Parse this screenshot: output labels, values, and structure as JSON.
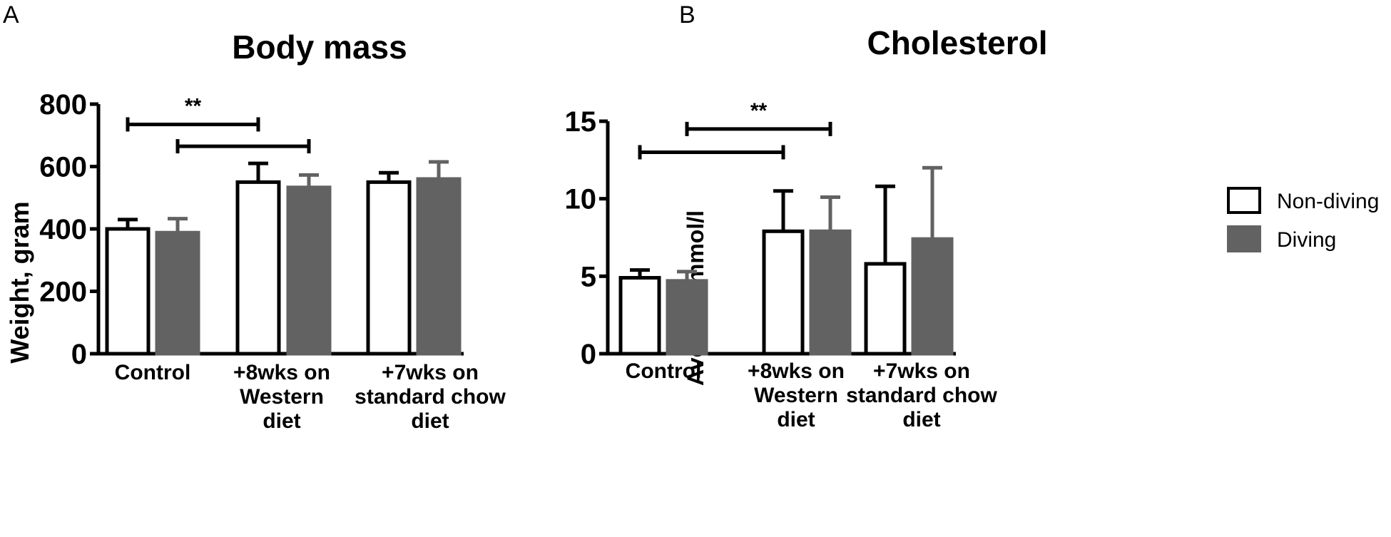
{
  "series_style": [
    {
      "name": "Non-diving",
      "fill": "#ffffff",
      "stroke": "#000000"
    },
    {
      "name": "Diving",
      "fill": "#626262",
      "stroke": "#626262"
    }
  ],
  "legend": {
    "items": [
      "Non-diving",
      "Diving"
    ]
  },
  "chart_data": [
    {
      "panel": "A",
      "type": "bar",
      "title": "Body mass",
      "xlabel": "",
      "ylabel": "Weight, gram",
      "ylim": [
        0,
        800
      ],
      "yticks": [
        0,
        200,
        400,
        600,
        800
      ],
      "ytick_labels": [
        "0",
        "200",
        "400",
        "600",
        "800"
      ],
      "categories": [
        [
          "Control"
        ],
        [
          "+8wks on",
          "Western",
          "diet"
        ],
        [
          "+7wks on",
          "standard chow",
          "diet"
        ]
      ],
      "series": [
        {
          "name": "Non-diving",
          "values": [
            400,
            550,
            550
          ],
          "errors": [
            30,
            60,
            30
          ]
        },
        {
          "name": "Diving",
          "values": [
            388,
            533,
            560
          ],
          "errors": [
            45,
            40,
            55
          ]
        }
      ],
      "significance": [
        {
          "label": "**",
          "from": [
            0,
            0
          ],
          "to": [
            1,
            0
          ],
          "y": 735
        },
        {
          "label": "",
          "from": [
            0,
            1
          ],
          "to": [
            1,
            1
          ],
          "y": 665
        }
      ]
    },
    {
      "panel": "B",
      "type": "bar",
      "title": "Cholesterol",
      "xlabel": "",
      "ylabel": "Average, mmol/l",
      "ylim": [
        0,
        15
      ],
      "yticks": [
        0,
        5,
        10,
        15
      ],
      "ytick_labels": [
        "0",
        "5",
        "10",
        "15"
      ],
      "categories": [
        [
          "Control"
        ],
        [
          "+8wks on",
          "Western",
          "diet"
        ],
        [
          "+7wks on",
          "standard chow",
          "diet"
        ]
      ],
      "series": [
        {
          "name": "Non-diving",
          "values": [
            4.9,
            7.9,
            5.8
          ],
          "errors": [
            0.5,
            2.6,
            5.0
          ]
        },
        {
          "name": "Diving",
          "values": [
            4.7,
            7.9,
            7.4
          ],
          "errors": [
            0.6,
            2.2,
            4.6
          ]
        }
      ],
      "significance": [
        {
          "label": "**",
          "from": [
            0,
            1
          ],
          "to": [
            1,
            1
          ],
          "y": 14.5
        },
        {
          "label": "",
          "from": [
            0,
            0
          ],
          "to": [
            1,
            0
          ],
          "y": 13.0
        }
      ]
    }
  ]
}
